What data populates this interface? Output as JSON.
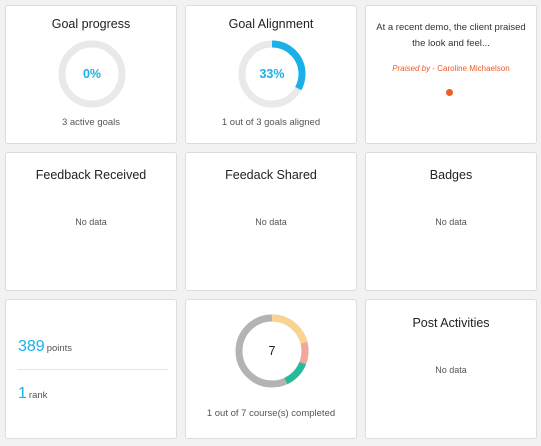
{
  "goal_progress": {
    "title": "Goal progress",
    "value_label": "0%",
    "value": 0,
    "subtitle": "3 active goals"
  },
  "goal_alignment": {
    "title": "Goal Alignment",
    "value_label": "33%",
    "value": 0.33,
    "subtitle": "1 out of 3 goals aligned"
  },
  "praise": {
    "quote": "At a recent demo, the client praised the look and feel...",
    "praised_by_label": "Praised by",
    "praised_by_name": "- Caroline Michaelson"
  },
  "feedback_received": {
    "title": "Feedback Received",
    "empty": "No data"
  },
  "feedback_shared": {
    "title": "Feedack Shared",
    "empty": "No data"
  },
  "badges": {
    "title": "Badges",
    "empty": "No data"
  },
  "points": {
    "points_value": "389",
    "points_unit": "points",
    "rank_value": "1",
    "rank_unit": "rank"
  },
  "courses": {
    "total": "7",
    "completed": 1,
    "subtitle": "1 out of 7 course(s) completed"
  },
  "post_activities": {
    "title": "Post Activities",
    "empty": "No data"
  },
  "colors": {
    "accent": "#1ab0e8",
    "ring_track": "#e9e9e9",
    "praise": "#f15a24",
    "donut_gray": "#b3b3b3",
    "donut_yellow": "#fad48f",
    "donut_pink": "#f3a79a",
    "donut_green": "#26b99a"
  }
}
